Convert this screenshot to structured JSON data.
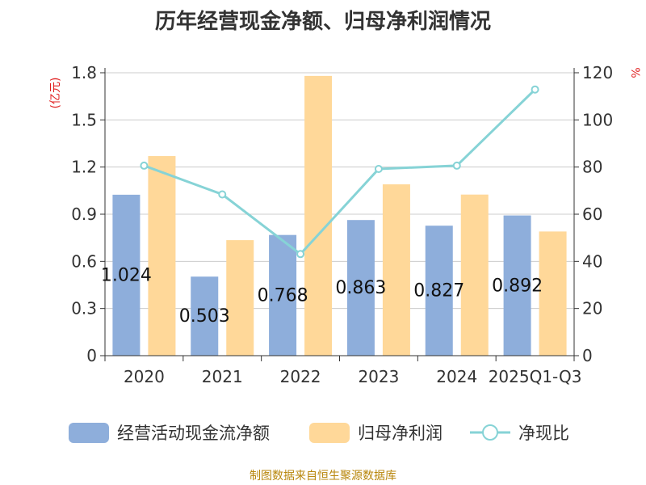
{
  "chart_data": {
    "type": "bar",
    "title": "历年经营现金净额、归母净利润情况",
    "y_left_label": "(亿元)",
    "y_right_label": "%",
    "y_left_range": [
      0,
      1.8
    ],
    "y_left_ticks": [
      "0",
      "0.3",
      "0.6",
      "0.9",
      "1.2",
      "1.5",
      "1.8"
    ],
    "y_right_range": [
      0,
      120
    ],
    "y_right_ticks": [
      "0",
      "20",
      "40",
      "60",
      "80",
      "100",
      "120"
    ],
    "categories": [
      "2020",
      "2021",
      "2022",
      "2023",
      "2024",
      "2025Q1-Q3"
    ],
    "series": [
      {
        "name": "经营活动现金流净额",
        "type": "bar",
        "axis": "left",
        "color": "#8eaedb",
        "values": [
          1.024,
          0.503,
          0.768,
          0.863,
          0.827,
          0.892
        ],
        "labels": [
          "1.024",
          "0.503",
          "0.768",
          "0.863",
          "0.827",
          "0.892"
        ]
      },
      {
        "name": "归母净利润",
        "type": "bar",
        "axis": "left",
        "color": "#ffd899",
        "values": [
          1.27,
          0.735,
          1.78,
          1.09,
          1.025,
          0.79
        ]
      },
      {
        "name": "净现比",
        "type": "line",
        "axis": "right",
        "color": "#86d3d6",
        "values": [
          80.6,
          68.4,
          43.1,
          79.2,
          80.6,
          112.9
        ]
      }
    ],
    "grid": true,
    "legend_position": "bottom"
  },
  "source": "制图数据来自恒生聚源数据库"
}
